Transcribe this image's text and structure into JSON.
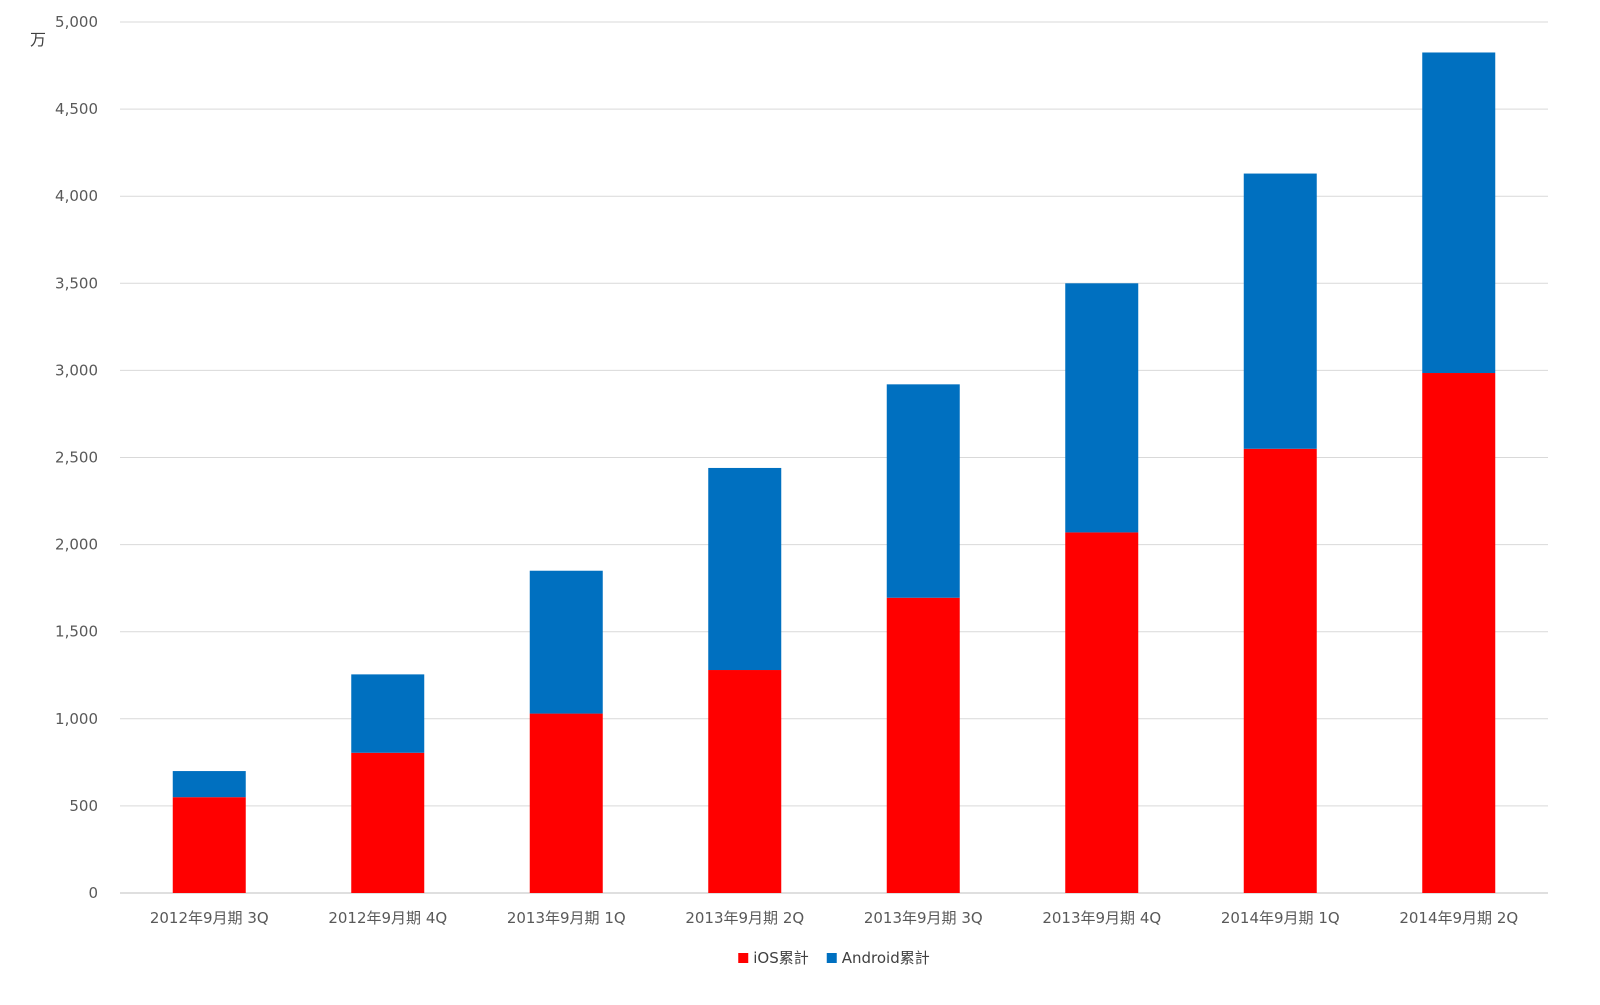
{
  "chart_data": {
    "type": "bar",
    "stacked": true,
    "title": "",
    "xlabel": "",
    "ylabel": "",
    "y_unit_label": "万",
    "ylim": [
      0,
      5000
    ],
    "yticks": [
      0,
      500,
      1000,
      1500,
      2000,
      2500,
      3000,
      3500,
      4000,
      4500,
      5000
    ],
    "ytick_labels": [
      "0",
      "500",
      "1,000",
      "1,500",
      "2,000",
      "2,500",
      "3,000",
      "3,500",
      "4,000",
      "4,500",
      "5,000"
    ],
    "grid": true,
    "legend_position": "bottom",
    "categories": [
      "2012年9月期 3Q",
      "2012年9月期 4Q",
      "2013年9月期 1Q",
      "2013年9月期 2Q",
      "2013年9月期 3Q",
      "2013年9月期 4Q",
      "2014年9月期 1Q",
      "2014年9月期 2Q"
    ],
    "series": [
      {
        "name": "iOS累計",
        "color": "#ff0000",
        "values": [
          550,
          805,
          1030,
          1280,
          1695,
          2070,
          2550,
          2985
        ]
      },
      {
        "name": "Android累計",
        "color": "#0070c0",
        "values": [
          150,
          450,
          820,
          1160,
          1225,
          1430,
          1580,
          1840
        ]
      }
    ]
  }
}
